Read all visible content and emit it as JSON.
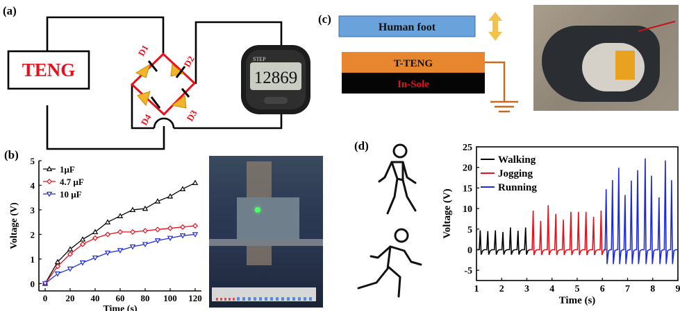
{
  "panels": {
    "a": {
      "label": "(a)",
      "teng_label": "TENG",
      "diodes": [
        "D1",
        "D2",
        "D3",
        "D4"
      ],
      "pedometer": {
        "step_label": "STEP",
        "reading": "12869"
      }
    },
    "b": {
      "label": "(b)",
      "chart_data": {
        "type": "line",
        "xlabel": "Time (s)",
        "ylabel": "Voltage (V)",
        "xlim": [
          -5,
          125
        ],
        "ylim": [
          -0.3,
          5
        ],
        "xticks": [
          0,
          20,
          40,
          60,
          80,
          100,
          120
        ],
        "yticks": [
          0,
          1,
          2,
          3,
          4,
          5
        ],
        "legend_position": "top-left",
        "series": [
          {
            "name": "1μF",
            "color": "#000000",
            "marker": "triangle-up",
            "x": [
              0,
              10,
              20,
              30,
              40,
              50,
              60,
              70,
              80,
              90,
              100,
              110,
              120
            ],
            "y": [
              0,
              0.88,
              1.4,
              1.8,
              2.1,
              2.5,
              2.75,
              3.0,
              3.05,
              3.35,
              3.55,
              3.85,
              4.1
            ]
          },
          {
            "name": "4.7 μF",
            "color": "#e8101a",
            "marker": "diamond",
            "x": [
              0,
              10,
              20,
              30,
              40,
              50,
              60,
              70,
              80,
              90,
              100,
              110,
              120
            ],
            "y": [
              0,
              0.7,
              1.2,
              1.6,
              1.85,
              2.0,
              2.1,
              2.1,
              2.15,
              2.2,
              2.25,
              2.3,
              2.35
            ]
          },
          {
            "name": "10 μF",
            "color": "#1f2bd9",
            "marker": "triangle-down",
            "x": [
              0,
              10,
              20,
              30,
              40,
              50,
              60,
              70,
              80,
              90,
              100,
              110,
              120
            ],
            "y": [
              0,
              0.4,
              0.6,
              0.85,
              1.05,
              1.25,
              1.35,
              1.5,
              1.6,
              1.75,
              1.85,
              1.95,
              2.0
            ]
          }
        ]
      }
    },
    "c": {
      "label": "(c)",
      "foot_label": "Human foot",
      "tteng_label": "T-TENG",
      "insole_label": "In-Sole"
    },
    "d": {
      "label": "(d)",
      "chart_data": {
        "type": "line",
        "xlabel": "Time (s)",
        "ylabel": "Voltage (V)",
        "xlim": [
          1,
          9
        ],
        "ylim": [
          -7.5,
          25
        ],
        "xticks": [
          1,
          2,
          3,
          4,
          5,
          6,
          7,
          8,
          9
        ],
        "yticks": [
          -5,
          0,
          5,
          10,
          15,
          20,
          25
        ],
        "legend_position": "top-left",
        "series": [
          {
            "name": "Walking",
            "color": "#000000",
            "peak_times": [
              1.15,
              1.45,
              1.75,
              2.05,
              2.35,
              2.65,
              2.95
            ],
            "peak_values": [
              4.7,
              4.5,
              4.7,
              4.3,
              5.4,
              4.6,
              5.4
            ],
            "trough_value": -1.2,
            "x_range": [
              1,
              3.1
            ]
          },
          {
            "name": "Jogging",
            "color": "#e8101a",
            "peak_times": [
              3.25,
              3.55,
              3.85,
              4.15,
              4.45,
              4.75,
              5.05,
              5.35,
              5.65,
              5.95
            ],
            "peak_values": [
              9.5,
              7.0,
              10.8,
              8.7,
              7.3,
              9.2,
              9.2,
              9.2,
              8.0,
              9.5
            ],
            "trough_value": -1.3,
            "x_range": [
              3.1,
              6.05
            ]
          },
          {
            "name": "Running",
            "color": "#1f2bd9",
            "peak_times": [
              6.15,
              6.4,
              6.65,
              6.9,
              7.15,
              7.4,
              7.7,
              7.95,
              8.25,
              8.5,
              8.75
            ],
            "peak_values": [
              14.7,
              16.9,
              19.9,
              13.3,
              16.8,
              19.3,
              22.2,
              18.0,
              12.7,
              21.7,
              16.9
            ],
            "trough_value": -3.5,
            "x_range": [
              6.05,
              9
            ]
          }
        ]
      }
    }
  }
}
